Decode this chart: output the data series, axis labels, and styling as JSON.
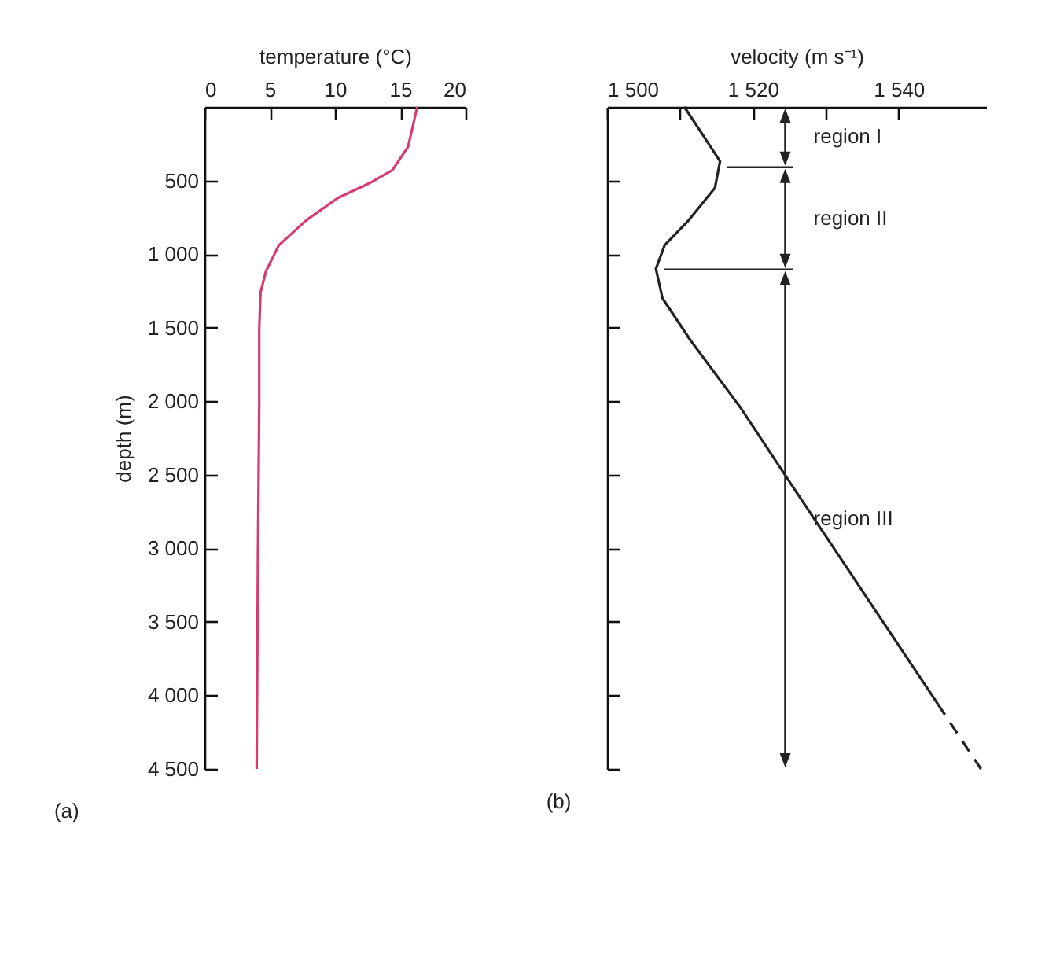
{
  "chart_data": [
    {
      "type": "line",
      "xlabel": "temperature (°C)",
      "ylabel": "depth (m)",
      "annotations": [
        "(a)"
      ],
      "xlim": [
        0,
        20
      ],
      "xticks": [
        0,
        5,
        10,
        15,
        20
      ],
      "ylim": [
        4500,
        0
      ],
      "yticks": [
        500,
        {
          "value": 1000,
          "label": "1 000"
        },
        {
          "value": 1500,
          "label": "1 500"
        },
        {
          "value": 2000,
          "label": "2 000"
        },
        {
          "value": 2500,
          "label": "2 500"
        },
        {
          "value": 3000,
          "label": "3 000"
        },
        {
          "value": 3500,
          "label": "3 500"
        },
        {
          "value": 4000,
          "label": "4 000"
        },
        {
          "value": 4500,
          "label": "4 500"
        }
      ],
      "series": [
        {
          "color": "#d63c6e",
          "x": [
            16.3,
            15.6,
            14.4,
            12.6,
            10.2,
            7.8,
            5.7,
            4.7,
            4.3,
            4.2,
            4.2,
            4.1,
            4.0
          ],
          "values": [
            0,
            270,
            430,
            520,
            620,
            770,
            940,
            1120,
            1260,
            1500,
            2000,
            3000,
            4500
          ]
        }
      ]
    },
    {
      "type": "line",
      "xlabel": "velocity (m s⁻¹)",
      "annotations": [
        "(b)",
        "region I",
        "region II",
        "region III"
      ],
      "xlim": [
        1500,
        1552
      ],
      "xticks": [
        {
          "value": 1500,
          "label": "1 500"
        },
        {
          "value": 1510,
          "label": null
        },
        {
          "value": 1520,
          "label": "1 520"
        },
        {
          "value": 1530,
          "label": null
        },
        {
          "value": 1540,
          "label": "1 540"
        }
      ],
      "ylim": [
        4500,
        0
      ],
      "yticks": [
        500,
        1000,
        1500,
        2000,
        2500,
        3000,
        3500,
        4000,
        4500
      ],
      "tick_labels": "x",
      "ref_lines": [
        {
          "axis": "y",
          "value": 410
        },
        {
          "axis": "y",
          "value": 1105
        }
      ],
      "series": [
        {
          "color": "#222222",
          "x": [
            1510.6,
            1513,
            1515.5,
            1514.8,
            1511.2,
            1507.9,
            1506.7,
            1507.6,
            1511.5,
            1518.4,
            1525.6,
            1545.4
          ],
          "values": [
            0,
            180,
            370,
            550,
            770,
            940,
            1100,
            1300,
            1590,
            2050,
            2590,
            4060
          ]
        },
        {
          "color": "#222222",
          "line_style": "dashed",
          "x": [
            1545.4,
            1551.3
          ],
          "values": [
            4060,
            4500
          ]
        }
      ]
    }
  ]
}
